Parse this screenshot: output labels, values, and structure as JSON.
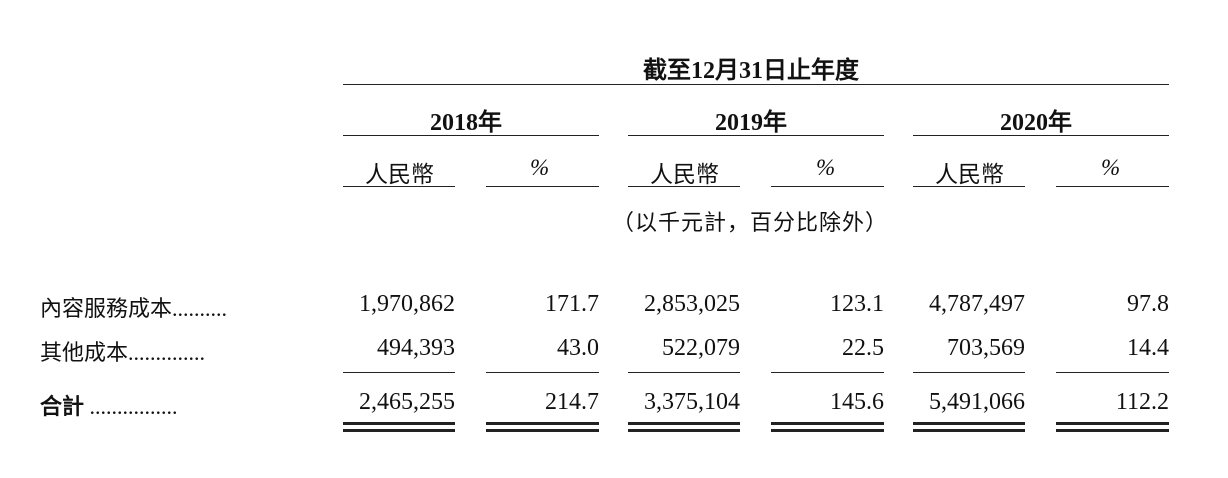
{
  "header": {
    "period": "截至12月31日止年度",
    "unit_note": "（以千元計，百分比除外）"
  },
  "years": [
    "2018年",
    "2019年",
    "2020年"
  ],
  "columns": {
    "rmb": "人民幣",
    "pct": "%"
  },
  "rows": [
    {
      "label": "內容服務成本",
      "leader": "..........",
      "values": [
        "1,970,862",
        "171.7",
        "2,853,025",
        "123.1",
        "4,787,497",
        "97.8"
      ]
    },
    {
      "label": "其他成本",
      "leader": "..............",
      "values": [
        "494,393",
        "43.0",
        "522,079",
        "22.5",
        "703,569",
        "14.4"
      ]
    },
    {
      "label": "合計",
      "leader": "................",
      "values": [
        "2,465,255",
        "214.7",
        "3,375,104",
        "145.6",
        "5,491,066",
        "112.2"
      ]
    }
  ]
}
